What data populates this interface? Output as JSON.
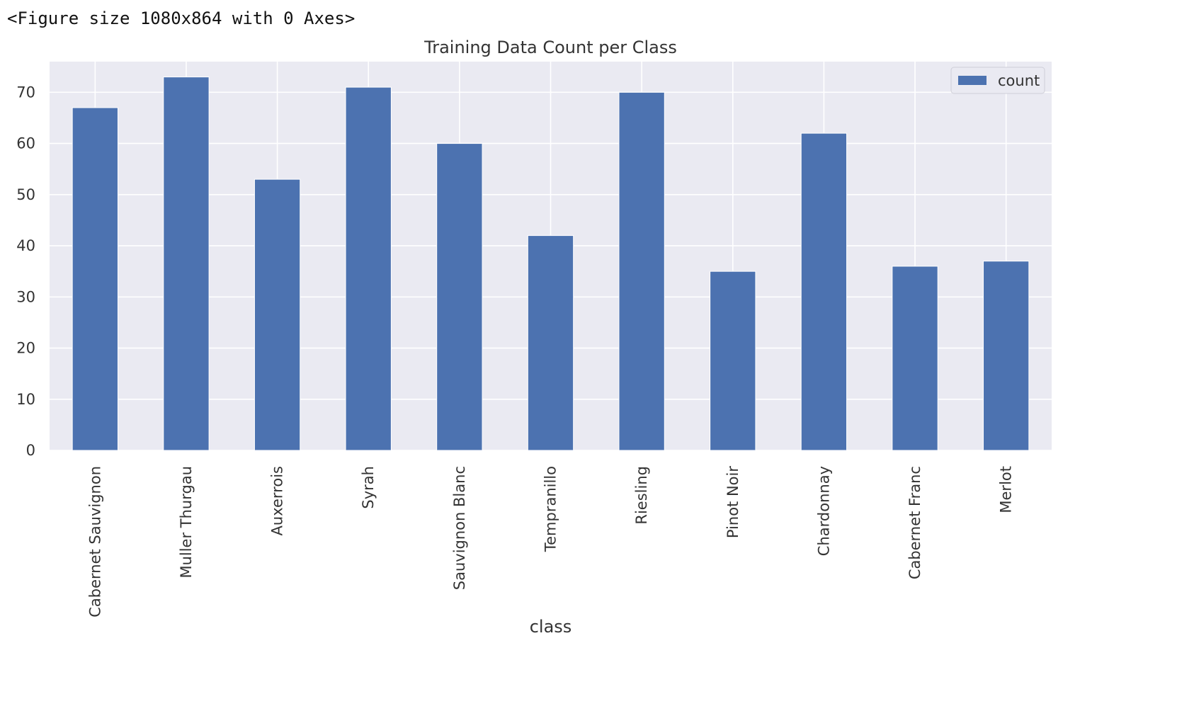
{
  "output_text": "<Figure size 1080x864 with 0 Axes>",
  "chart_data": {
    "type": "bar",
    "title": "Training Data Count per Class",
    "xlabel": "class",
    "ylabel": "",
    "categories": [
      "Cabernet Sauvignon",
      "Muller Thurgau",
      "Auxerrois",
      "Syrah",
      "Sauvignon Blanc",
      "Tempranillo",
      "Riesling",
      "Pinot Noir",
      "Chardonnay",
      "Cabernet Franc",
      "Merlot"
    ],
    "series": [
      {
        "name": "count",
        "values": [
          67,
          73,
          53,
          71,
          60,
          42,
          70,
          35,
          62,
          36,
          37
        ]
      }
    ],
    "ylim": [
      0,
      76
    ],
    "yticks": [
      0,
      10,
      20,
      30,
      40,
      50,
      60,
      70
    ],
    "grid": true,
    "legend": "top-right",
    "bar_color": "#4c72b0",
    "background_color": "#eaeaf2"
  }
}
